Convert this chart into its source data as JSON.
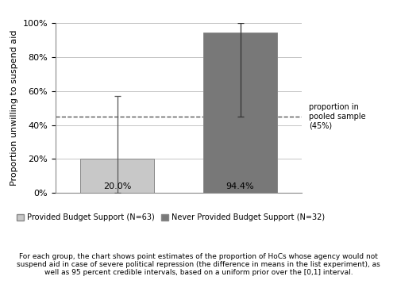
{
  "categories": [
    "Provided Budget Support (N=63)",
    "Never Provided Budget Support (N=32)"
  ],
  "values": [
    0.2,
    0.944
  ],
  "bar_labels": [
    "20.0%",
    "94.4%"
  ],
  "bar_colors": [
    "#c8c8c8",
    "#787878"
  ],
  "error_bar1_low": 0.0,
  "error_bar1_high": 0.57,
  "error_bar2_low": 0.45,
  "error_bar2_high": 1.0,
  "dashed_line_y": 0.45,
  "dashed_line_label_lines": [
    "proportion in",
    "pooled sample",
    "(45%)"
  ],
  "ylabel": "Proportion unwilling to suspend aid",
  "ylim": [
    0.0,
    1.0
  ],
  "yticks": [
    0.0,
    0.2,
    0.4,
    0.6,
    0.8,
    1.0
  ],
  "ytick_labels": [
    "0%",
    "20%",
    "40%",
    "60%",
    "80%",
    "100%"
  ],
  "legend_labels": [
    "Provided Budget Support (N=63)",
    "Never Provided Budget Support (N=32)"
  ],
  "footnote_lines": [
    "For each group, the chart shows point estimates of the proportion of HoCs whose agency would not",
    "suspend aid in case of severe political repression (the difference in means in the list experiment), as",
    "well as 95 percent credible intervals, based on a uniform prior over the [0,1] interval."
  ],
  "bar_edge_color": "#888888",
  "background_color": "#ffffff",
  "grid_color": "#bbbbbb"
}
